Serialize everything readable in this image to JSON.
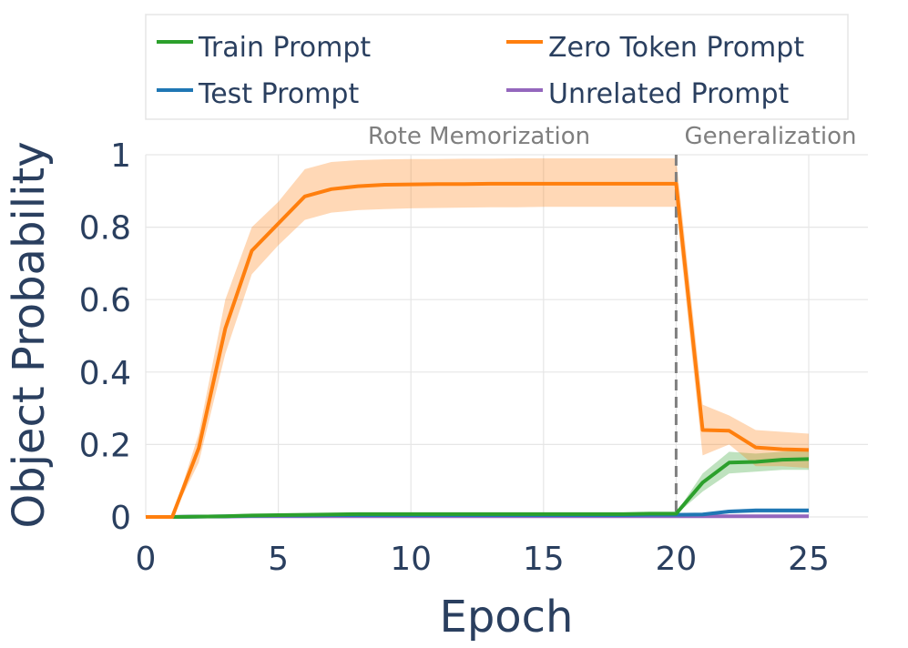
{
  "chart_data": {
    "type": "line",
    "xlabel": "Epoch",
    "ylabel": "Object Probability",
    "xlim": [
      0,
      25
    ],
    "ylim": [
      0,
      1
    ],
    "x_ticks": [
      0,
      5,
      10,
      15,
      20,
      25
    ],
    "y_ticks": [
      0,
      0.2,
      0.4,
      0.6,
      0.8,
      1
    ],
    "x_tick_labels": [
      "0",
      "5",
      "10",
      "15",
      "20",
      "25"
    ],
    "y_tick_labels": [
      "0",
      "0.2",
      "0.4",
      "0.6",
      "0.8",
      "1"
    ],
    "grid": true,
    "legend_position": "top",
    "vertical_marker": {
      "x": 20,
      "style": "dashed"
    },
    "annotations": [
      {
        "text": "Rote Memorization",
        "x": 12.5
      },
      {
        "text": "Generalization",
        "x": 23.5
      }
    ],
    "x": [
      0,
      1,
      2,
      3,
      4,
      5,
      6,
      7,
      8,
      9,
      10,
      11,
      12,
      13,
      14,
      15,
      16,
      17,
      18,
      19,
      20,
      21,
      22,
      23,
      24,
      25
    ],
    "series": [
      {
        "name": "Train Prompt",
        "color": "#2ca02c",
        "values": [
          0,
          0,
          0.001,
          0.002,
          0.004,
          0.005,
          0.006,
          0.007,
          0.008,
          0.008,
          0.008,
          0.008,
          0.008,
          0.008,
          0.008,
          0.008,
          0.008,
          0.008,
          0.008,
          0.009,
          0.009,
          0.095,
          0.15,
          0.152,
          0.158,
          0.16
        ],
        "lower": [
          0,
          0,
          0.001,
          0.002,
          0.003,
          0.004,
          0.005,
          0.006,
          0.006,
          0.006,
          0.006,
          0.006,
          0.006,
          0.006,
          0.006,
          0.006,
          0.006,
          0.006,
          0.006,
          0.007,
          0.007,
          0.07,
          0.12,
          0.125,
          0.13,
          0.13
        ],
        "upper": [
          0,
          0,
          0.002,
          0.003,
          0.005,
          0.006,
          0.007,
          0.008,
          0.009,
          0.01,
          0.01,
          0.01,
          0.01,
          0.01,
          0.01,
          0.01,
          0.01,
          0.01,
          0.01,
          0.011,
          0.011,
          0.12,
          0.18,
          0.175,
          0.18,
          0.185
        ]
      },
      {
        "name": "Test Prompt",
        "color": "#1f77b4",
        "values": [
          0,
          0,
          0.001,
          0.002,
          0.003,
          0.004,
          0.004,
          0.005,
          0.005,
          0.005,
          0.005,
          0.005,
          0.005,
          0.005,
          0.005,
          0.005,
          0.005,
          0.005,
          0.005,
          0.006,
          0.006,
          0.007,
          0.015,
          0.018,
          0.018,
          0.018
        ],
        "lower": [
          0,
          0,
          0.001,
          0.001,
          0.002,
          0.003,
          0.003,
          0.004,
          0.004,
          0.004,
          0.004,
          0.004,
          0.004,
          0.004,
          0.004,
          0.004,
          0.004,
          0.004,
          0.004,
          0.005,
          0.005,
          0.005,
          0.01,
          0.012,
          0.012,
          0.012
        ],
        "upper": [
          0,
          0,
          0.002,
          0.003,
          0.004,
          0.005,
          0.005,
          0.006,
          0.006,
          0.006,
          0.006,
          0.006,
          0.006,
          0.006,
          0.006,
          0.006,
          0.006,
          0.006,
          0.006,
          0.007,
          0.007,
          0.009,
          0.02,
          0.024,
          0.024,
          0.024
        ]
      },
      {
        "name": "Zero Token Prompt",
        "color": "#ff7f0e",
        "values": [
          0,
          0,
          0.19,
          0.52,
          0.735,
          0.81,
          0.885,
          0.905,
          0.913,
          0.917,
          0.918,
          0.919,
          0.919,
          0.92,
          0.92,
          0.92,
          0.92,
          0.92,
          0.92,
          0.92,
          0.92,
          0.24,
          0.238,
          0.192,
          0.187,
          0.185
        ],
        "lower": [
          0,
          0,
          0.15,
          0.45,
          0.67,
          0.75,
          0.82,
          0.84,
          0.847,
          0.85,
          0.852,
          0.853,
          0.854,
          0.855,
          0.855,
          0.856,
          0.856,
          0.856,
          0.856,
          0.856,
          0.856,
          0.17,
          0.2,
          0.14,
          0.14,
          0.135
        ],
        "upper": [
          0,
          0,
          0.23,
          0.6,
          0.8,
          0.87,
          0.96,
          0.98,
          0.985,
          0.987,
          0.988,
          0.988,
          0.989,
          0.989,
          0.99,
          0.99,
          0.99,
          0.99,
          0.99,
          0.99,
          0.99,
          0.31,
          0.28,
          0.24,
          0.235,
          0.23
        ]
      },
      {
        "name": "Unrelated Prompt",
        "color": "#9467bd",
        "values": [
          0,
          0,
          0.001,
          0.001,
          0.002,
          0.002,
          0.002,
          0.002,
          0.002,
          0.002,
          0.002,
          0.002,
          0.002,
          0.002,
          0.002,
          0.002,
          0.002,
          0.002,
          0.002,
          0.002,
          0.002,
          0.002,
          0.002,
          0.002,
          0.002,
          0.002
        ],
        "lower": [
          0,
          0,
          0,
          0,
          0.001,
          0.001,
          0.001,
          0.001,
          0.001,
          0.001,
          0.001,
          0.001,
          0.001,
          0.001,
          0.001,
          0.001,
          0.001,
          0.001,
          0.001,
          0.001,
          0.001,
          0.001,
          0.001,
          0.001,
          0.001,
          0.001
        ],
        "upper": [
          0,
          0,
          0.002,
          0.002,
          0.003,
          0.003,
          0.003,
          0.003,
          0.003,
          0.003,
          0.003,
          0.003,
          0.003,
          0.003,
          0.003,
          0.003,
          0.003,
          0.003,
          0.003,
          0.003,
          0.003,
          0.003,
          0.003,
          0.003,
          0.003,
          0.003
        ]
      }
    ]
  },
  "legend": {
    "train_label": "Train Prompt",
    "test_label": "Test Prompt",
    "zero_label": "Zero Token Prompt",
    "unrelated_label": "Unrelated Prompt"
  },
  "annotation": {
    "rote_label": "Rote Memorization",
    "generalization_label": "Generalization"
  },
  "axes": {
    "xlabel": "Epoch",
    "ylabel": "Object Probability"
  }
}
